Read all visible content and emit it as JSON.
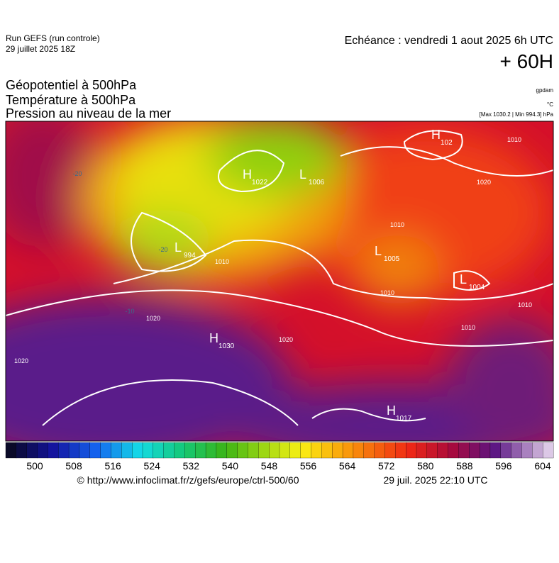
{
  "header": {
    "run": "Run GEFS (run controle)",
    "run_date": "29 juillet 2025 18Z",
    "valid": "Echéance : vendredi 1 aout 2025 6h UTC",
    "lead": "+ 60H"
  },
  "titles": [
    "Géopotentiel à 500hPa",
    "Température à 500hPa",
    "Pression au niveau de la mer"
  ],
  "units": [
    "gpdam",
    "°C",
    "[Max 1030.2 | Min 994.3] hPa"
  ],
  "pressure_centers": [
    {
      "symbol": "H",
      "value": "1022"
    },
    {
      "symbol": "L",
      "value": "1006"
    },
    {
      "symbol": "L",
      "value": "994"
    },
    {
      "symbol": "H",
      "value": "1030"
    },
    {
      "symbol": "H",
      "value": "1017"
    },
    {
      "symbol": "L",
      "value": "1004"
    },
    {
      "symbol": "L",
      "value": "1005"
    },
    {
      "symbol": "H",
      "value": "102"
    }
  ],
  "isobar_labels": [
    "1020",
    "1010",
    "1010",
    "1020",
    "1020",
    "1020",
    "1010",
    "1010",
    "1010",
    "1010"
  ],
  "temperature_labels": [
    "-20",
    "-20",
    "-10"
  ],
  "colorbar": {
    "ticks": [
      500,
      508,
      516,
      524,
      532,
      540,
      548,
      556,
      564,
      572,
      580,
      588,
      596,
      604
    ]
  },
  "footer": {
    "url": "© http://www.infoclimat.fr/z/gefs/europe/ctrl-500/60",
    "timestamp": "29 juil. 2025 22:10 UTC"
  }
}
